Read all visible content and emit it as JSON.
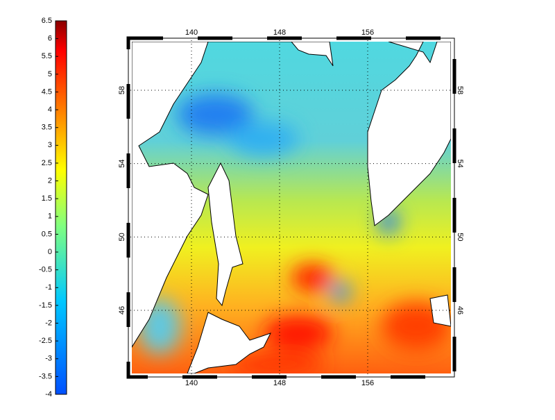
{
  "colorbar": {
    "lim": [
      -4,
      6.5
    ],
    "ticks": [
      6.5,
      6,
      5.5,
      5,
      4.5,
      4,
      3.5,
      3,
      2.5,
      2,
      1.5,
      1,
      0.5,
      0,
      -0.5,
      -1,
      -1.5,
      -2,
      -2.5,
      -3,
      -3.5,
      -4
    ]
  },
  "map": {
    "lon_ticks": [
      140,
      148,
      156
    ],
    "lat_ticks": [
      58,
      54,
      50,
      46
    ]
  }
}
